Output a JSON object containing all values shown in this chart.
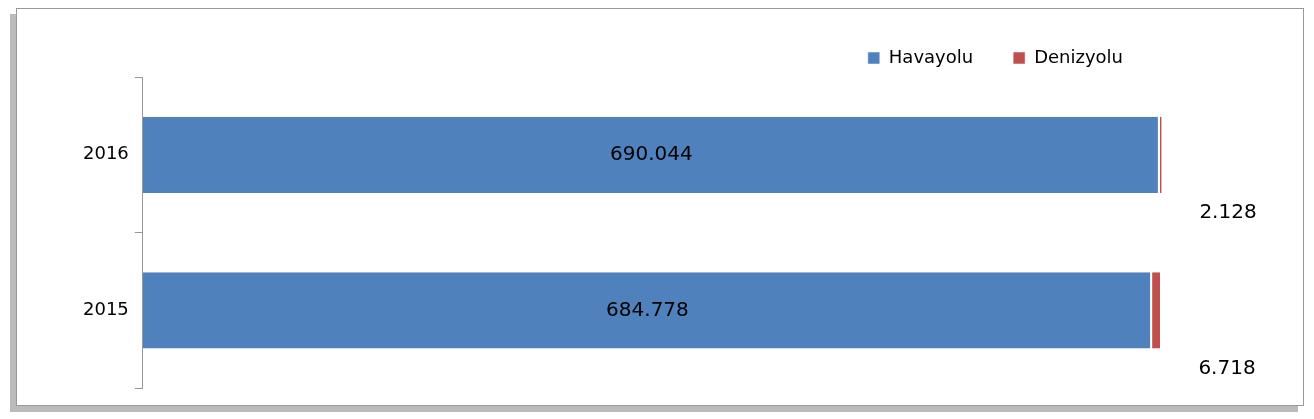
{
  "chart_data": {
    "type": "bar",
    "orientation": "horizontal",
    "stacked": true,
    "legend": "top right",
    "categories": [
      "2016",
      "2015"
    ],
    "series": [
      {
        "name": "Havayolu",
        "color": "#4f81bd",
        "values": [
          690044,
          684778
        ],
        "value_labels": [
          "690.044",
          "684.778"
        ]
      },
      {
        "name": "Denizyolu",
        "color": "#c0504d",
        "values": [
          2128,
          6718
        ],
        "value_labels": [
          "2.128",
          "6.718"
        ]
      }
    ]
  }
}
